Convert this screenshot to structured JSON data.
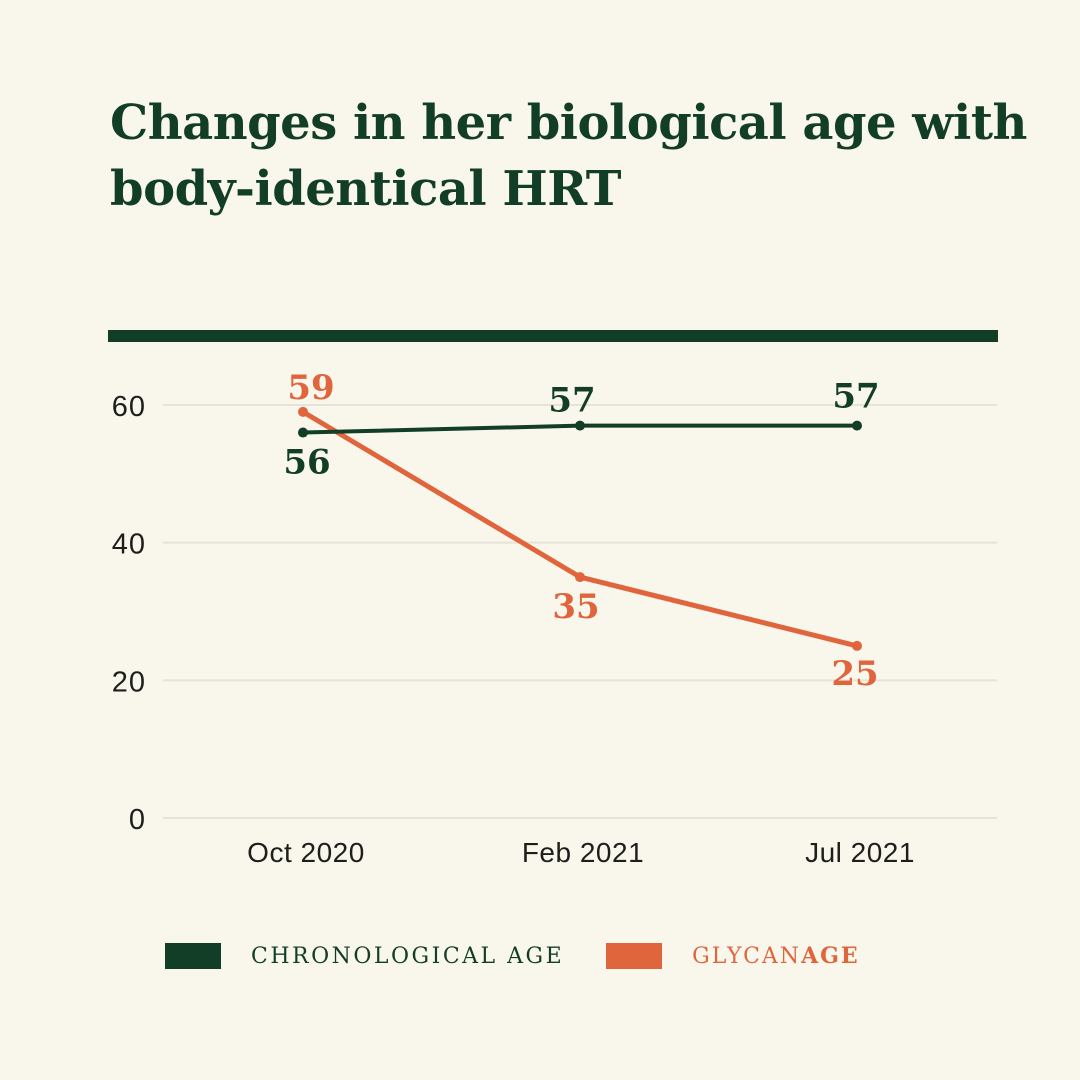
{
  "title": {
    "line1": "Changes in her biological age with",
    "line2": "body-identical HRT"
  },
  "colors": {
    "background": "#F9F7EC",
    "green": "#123D27",
    "orange": "#E0653C",
    "gridline": "#E6E3D9",
    "axis_text": "#1E1E1C"
  },
  "chart_data": {
    "type": "line",
    "title": "Changes in her biological age with body-identical HRT",
    "categories": [
      "Oct 2020",
      "Feb 2021",
      "Jul 2021"
    ],
    "series": [
      {
        "name": "CHRONOLOGICAL AGE",
        "color": "#123D27",
        "values": [
          56,
          57,
          57
        ],
        "point_labels": [
          "56",
          "57",
          "57"
        ]
      },
      {
        "name": "GLYCANAGE",
        "color": "#E0653C",
        "values": [
          59,
          35,
          25
        ],
        "point_labels": [
          "59",
          "35",
          "25"
        ]
      }
    ],
    "yticks": [
      "0",
      "20",
      "40",
      "60"
    ],
    "ylim": [
      0,
      66
    ],
    "grid": true,
    "legend_position": "bottom"
  },
  "legend": {
    "chronological_label": "CHRONOLOGICAL AGE",
    "glycan_prefix": "GLYCAN",
    "glycan_bold": "AGE"
  }
}
